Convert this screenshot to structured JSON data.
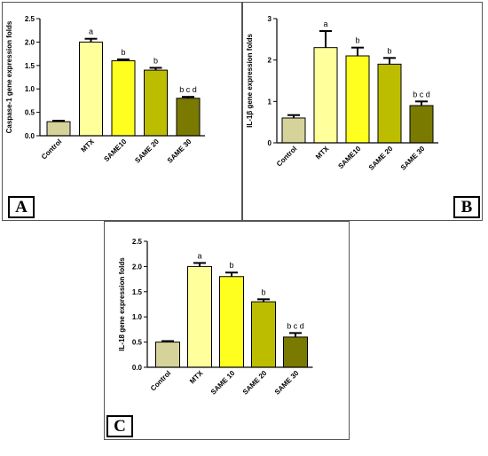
{
  "chart_data": [
    {
      "panel": "A",
      "type": "bar",
      "title": "",
      "xlabel": "",
      "ylabel": "Caspase-1 gene expression folds",
      "ylim": [
        0,
        2.5
      ],
      "yticks": [
        "0.0",
        "0.5",
        "1.0",
        "1.5",
        "2.0",
        "2.5"
      ],
      "categories": [
        "Control",
        "MTX",
        "SAME10",
        "SAME 20",
        "SAME 30"
      ],
      "values": [
        0.3,
        2.0,
        1.6,
        1.4,
        0.8
      ],
      "errors": [
        0.02,
        0.07,
        0.03,
        0.05,
        0.03
      ],
      "labels": [
        "",
        "a",
        "b",
        "b",
        "b c d"
      ],
      "colors": [
        "#d6d39a",
        "#ffff9c",
        "#ffff1f",
        "#bdbd00",
        "#7a7a00"
      ]
    },
    {
      "panel": "B",
      "type": "bar",
      "title": "",
      "xlabel": "",
      "ylabel": "IL-1β gene expression folds",
      "ylim": [
        0,
        3
      ],
      "yticks": [
        "0",
        "1",
        "2",
        "3"
      ],
      "categories": [
        "Control",
        "MTX",
        "SAME10",
        "SAME 20",
        "SAME 30"
      ],
      "values": [
        0.6,
        2.3,
        2.1,
        1.9,
        0.9
      ],
      "errors": [
        0.07,
        0.4,
        0.2,
        0.15,
        0.1
      ],
      "labels": [
        "",
        "a",
        "b",
        "b",
        "b c d"
      ],
      "colors": [
        "#d6d39a",
        "#ffff9c",
        "#ffff1f",
        "#bdbd00",
        "#7a7a00"
      ]
    },
    {
      "panel": "C",
      "type": "bar",
      "title": "",
      "xlabel": "",
      "ylabel": "IL-18 gene expression folds",
      "ylim": [
        0,
        2.5
      ],
      "yticks": [
        "0.0",
        "0.5",
        "1.0",
        "1.5",
        "2.0",
        "2.5"
      ],
      "categories": [
        "Control",
        "MTX",
        "SAME 10",
        "SAME 20",
        "SAME 30"
      ],
      "values": [
        0.5,
        2.0,
        1.8,
        1.3,
        0.6
      ],
      "errors": [
        0.02,
        0.07,
        0.08,
        0.05,
        0.08
      ],
      "labels": [
        "",
        "a",
        "b",
        "b",
        "b c d"
      ],
      "colors": [
        "#d6d39a",
        "#ffff9c",
        "#ffff1f",
        "#bdbd00",
        "#7a7a00"
      ]
    }
  ]
}
